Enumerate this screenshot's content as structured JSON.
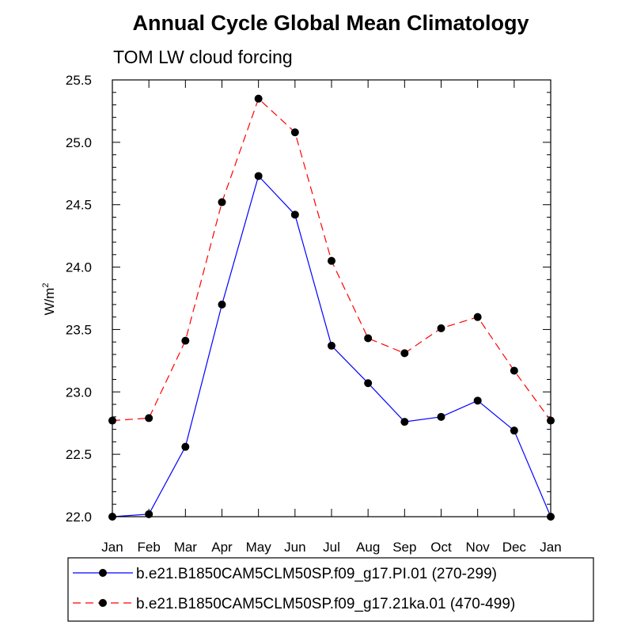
{
  "chart_data": {
    "type": "line",
    "title": "Annual Cycle Global Mean Climatology",
    "subtitle": "TOM LW cloud forcing",
    "ylabel": "W/m",
    "ylabel_superscript": "2",
    "xlabel": "",
    "categories": [
      "Jan",
      "Feb",
      "Mar",
      "Apr",
      "May",
      "Jun",
      "Jul",
      "Aug",
      "Sep",
      "Oct",
      "Nov",
      "Dec",
      "Jan"
    ],
    "ylim": [
      22.0,
      25.5
    ],
    "y_ticks": [
      "22.0",
      "22.5",
      "23.0",
      "23.5",
      "24.0",
      "24.5",
      "25.0",
      "25.5"
    ],
    "grid": false,
    "legend_position": "bottom",
    "series": [
      {
        "name": "b.e21.B1850CAM5CLM50SP.f09_g17.PI.01 (270-299)",
        "color": "#0000ff",
        "line_style": "solid",
        "marker": "filled-circle",
        "values": [
          22.0,
          22.02,
          22.56,
          23.7,
          24.73,
          24.42,
          23.37,
          23.07,
          22.76,
          22.8,
          22.93,
          22.69,
          22.0
        ]
      },
      {
        "name": "b.e21.B1850CAM5CLM50SP.f09_g17.21ka.01 (470-499)",
        "color": "#ff0000",
        "line_style": "dashed",
        "marker": "filled-circle",
        "values": [
          22.77,
          22.79,
          23.41,
          24.52,
          25.35,
          25.08,
          24.05,
          23.43,
          23.31,
          23.51,
          23.6,
          23.17,
          22.77
        ]
      }
    ]
  }
}
